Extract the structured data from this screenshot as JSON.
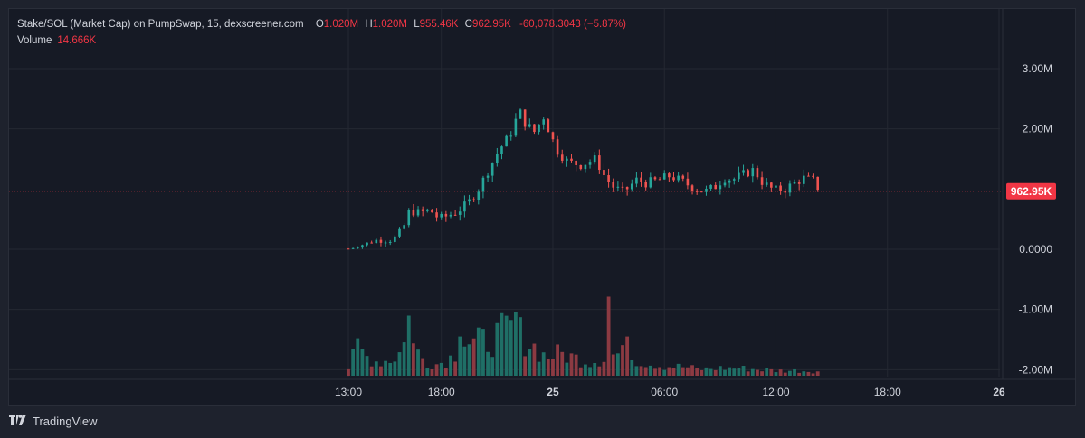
{
  "header": {
    "title": "Stake/SOL (Market Cap) on PumpSwap, 15, dexscreener.com",
    "ohlc": [
      {
        "key": "O",
        "value": "1.020M"
      },
      {
        "key": "H",
        "value": "1.020M"
      },
      {
        "key": "L",
        "value": "955.46K"
      },
      {
        "key": "C",
        "value": "962.95K"
      }
    ],
    "change": "-60,078.3043 (−5.87%)",
    "volume_label": "Volume",
    "volume_value": "14.666K"
  },
  "footer": {
    "brand": "TradingView",
    "logo": "tradingview-logo"
  },
  "colors": {
    "up": "#26a69a",
    "down": "#ef5350",
    "up_volume": "#1f6f66",
    "down_volume": "#8c3a42",
    "price_line": "#f23645",
    "grid": "#242832",
    "background": "#161a25"
  },
  "chart_data": {
    "type": "candlestick",
    "title": "Stake/SOL (Market Cap) on PumpSwap, 15, dexscreener.com",
    "interval": "15",
    "y_ticks": [
      "3.00M",
      "2.00M",
      "0.0000",
      "-1.00M",
      "-2.00M"
    ],
    "y_tick_values": [
      3000000,
      2000000,
      0,
      -1000000,
      -2000000
    ],
    "ylim": [
      -2050000,
      3300000
    ],
    "x_ticks": [
      {
        "label": "13:00",
        "hour": 13,
        "bold": false
      },
      {
        "label": "18:00",
        "hour": 18,
        "bold": false
      },
      {
        "label": "25",
        "hour": 24,
        "bold": true
      },
      {
        "label": "06:00",
        "hour": 30,
        "bold": false
      },
      {
        "label": "12:00",
        "hour": 36,
        "bold": false
      },
      {
        "label": "18:00",
        "hour": 42,
        "bold": false
      },
      {
        "label": "26",
        "hour": 48,
        "bold": true
      }
    ],
    "xlim_hours": [
      13,
      48
    ],
    "last_price": "962.95K",
    "last_price_value": 962950,
    "grid": true,
    "anchors": [
      [
        13.0,
        10000
      ],
      [
        13.4,
        40000
      ],
      [
        14.5,
        150000
      ],
      [
        15.4,
        160000
      ],
      [
        15.9,
        310000
      ],
      [
        16.3,
        650000
      ],
      [
        16.8,
        600000
      ],
      [
        17.4,
        650000
      ],
      [
        17.9,
        500000
      ],
      [
        18.8,
        620000
      ],
      [
        19.4,
        750000
      ],
      [
        20.0,
        1000000
      ],
      [
        20.5,
        1300000
      ],
      [
        21.1,
        1650000
      ],
      [
        21.7,
        1900000
      ],
      [
        22.2,
        2300000
      ],
      [
        22.5,
        2100000
      ],
      [
        23.0,
        1950000
      ],
      [
        23.5,
        2200000
      ],
      [
        24.2,
        1650000
      ],
      [
        24.8,
        1450000
      ],
      [
        25.5,
        1400000
      ],
      [
        26.3,
        1500000
      ],
      [
        26.8,
        1200000
      ],
      [
        27.3,
        1020000
      ],
      [
        27.8,
        950000
      ],
      [
        28.5,
        1150000
      ],
      [
        29.0,
        1100000
      ],
      [
        29.7,
        1150000
      ],
      [
        30.3,
        1220000
      ],
      [
        31.0,
        1120000
      ],
      [
        31.6,
        1010000
      ],
      [
        32.2,
        960000
      ],
      [
        32.7,
        1030000
      ],
      [
        33.2,
        1180000
      ],
      [
        33.7,
        1160000
      ],
      [
        34.3,
        1250000
      ],
      [
        34.8,
        1320000
      ],
      [
        35.3,
        1100000
      ],
      [
        35.9,
        980000
      ],
      [
        36.5,
        1000000
      ],
      [
        37.0,
        1100000
      ],
      [
        37.5,
        1180000
      ],
      [
        38.0,
        1140000
      ],
      [
        38.4,
        962950
      ]
    ],
    "volume_anchors": [
      [
        13.0,
        0.12
      ],
      [
        13.5,
        0.45
      ],
      [
        14.0,
        0.3
      ],
      [
        14.6,
        0.22
      ],
      [
        15.3,
        0.25
      ],
      [
        15.9,
        0.4
      ],
      [
        16.2,
        0.68
      ],
      [
        16.6,
        0.4
      ],
      [
        17.2,
        0.22
      ],
      [
        17.8,
        0.18
      ],
      [
        18.6,
        0.3
      ],
      [
        19.2,
        0.58
      ],
      [
        19.7,
        0.5
      ],
      [
        20.4,
        0.55
      ],
      [
        21.0,
        0.62
      ],
      [
        21.6,
        0.72
      ],
      [
        22.3,
        0.65
      ],
      [
        22.9,
        0.48
      ],
      [
        23.6,
        0.3
      ],
      [
        24.4,
        0.35
      ],
      [
        25.2,
        0.28
      ],
      [
        26.0,
        0.22
      ],
      [
        26.9,
        0.3
      ],
      [
        27.6,
        0.35
      ],
      [
        28.3,
        0.28
      ],
      [
        29.1,
        0.2
      ],
      [
        30.0,
        0.15
      ],
      [
        31.0,
        0.14
      ],
      [
        32.0,
        0.1
      ],
      [
        33.0,
        0.12
      ],
      [
        34.0,
        0.12
      ],
      [
        35.0,
        0.1
      ],
      [
        36.0,
        0.08
      ],
      [
        37.0,
        0.08
      ],
      [
        38.4,
        0.07
      ]
    ],
    "volume_spikes": [
      [
        16.25,
        0.95
      ],
      [
        21.9,
        1.0
      ],
      [
        26.9,
        1.25
      ],
      [
        27.9,
        0.62
      ],
      [
        19.05,
        0.62
      ]
    ]
  }
}
